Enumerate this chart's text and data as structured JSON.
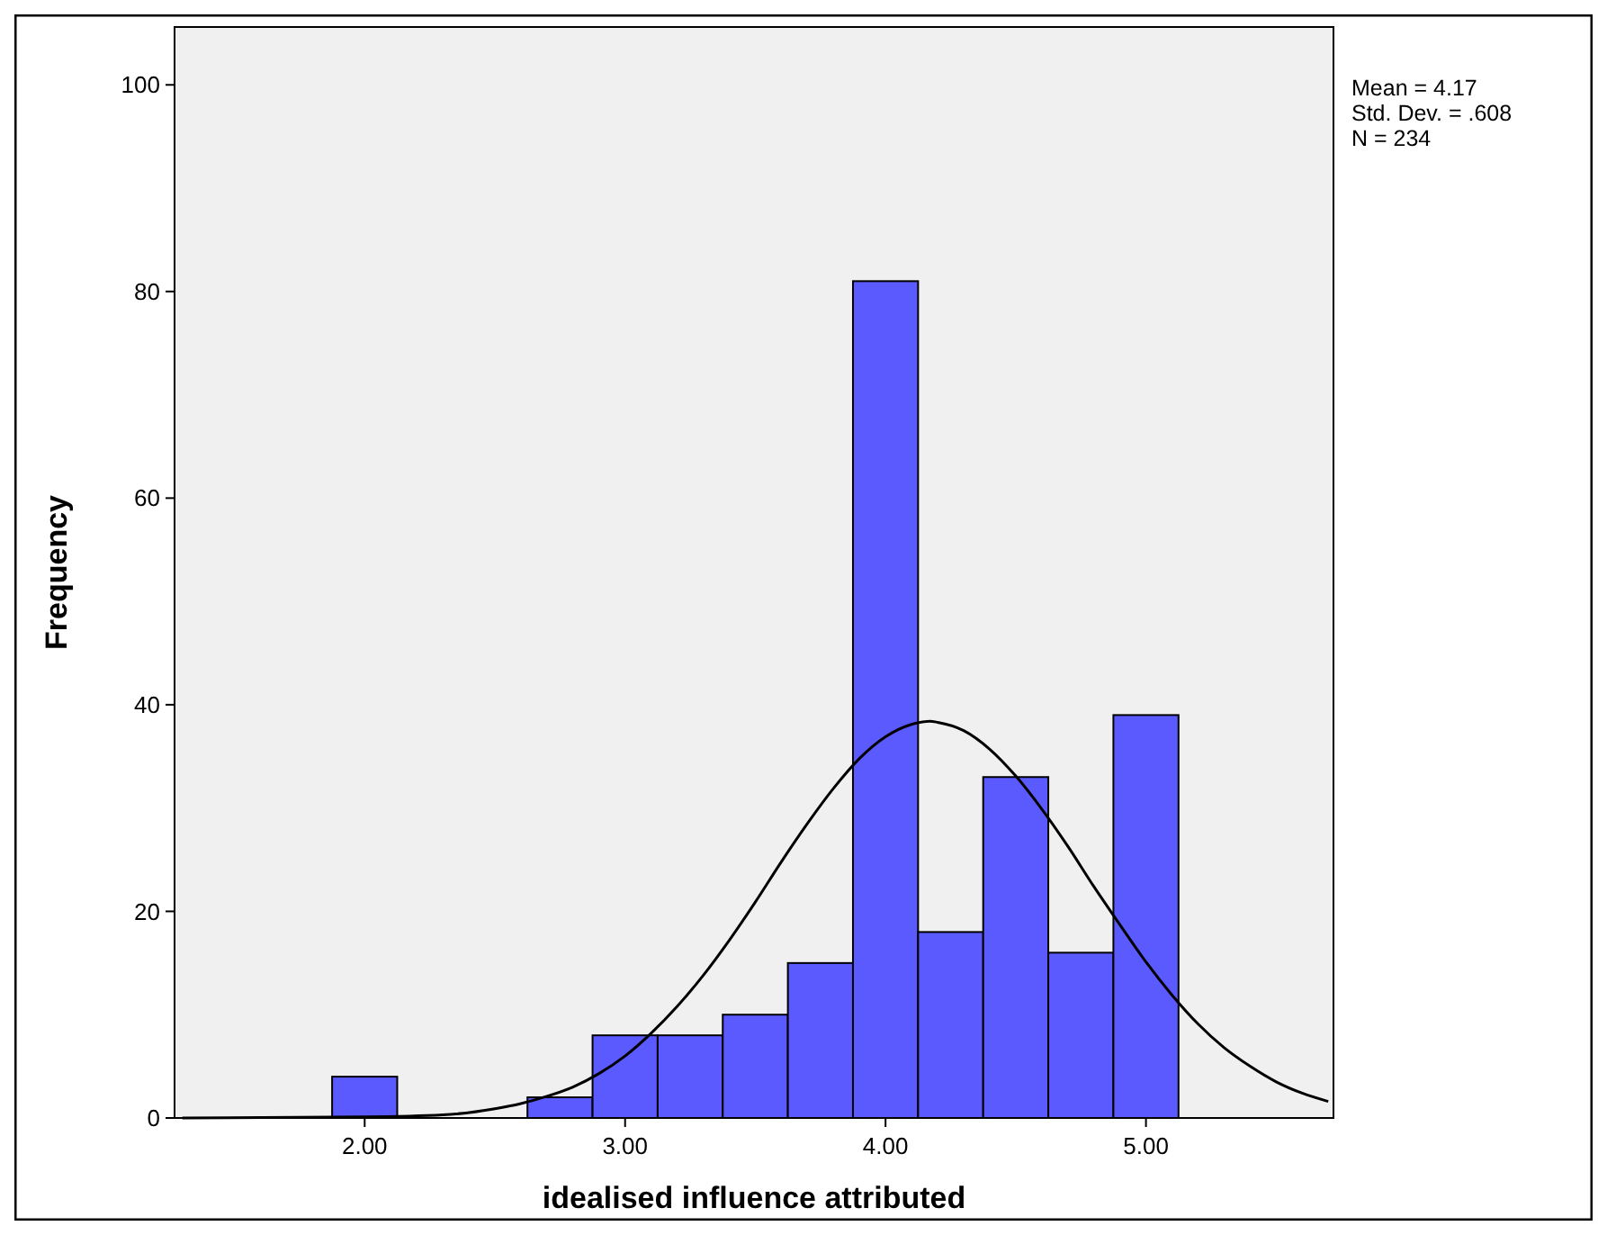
{
  "chart_data": {
    "type": "histogram",
    "xlabel": "idealised influence attributed",
    "ylabel": "Frequency",
    "annotations": [
      "Mean = 4.17",
      "Std. Dev. = .608",
      "N = 234"
    ],
    "bins": [
      1.875,
      2.125,
      2.375,
      2.625,
      2.875,
      3.125,
      3.375,
      3.625,
      3.875,
      4.125,
      4.375,
      4.625,
      4.875,
      5.125
    ],
    "values": [
      4,
      0,
      0,
      2,
      8,
      8,
      10,
      15,
      81,
      18,
      33,
      16,
      39
    ],
    "color": "#5a5aff",
    "series": [
      {
        "type": "line",
        "color": "#000000",
        "x": [
          1.3,
          2.0,
          2.3,
          2.5,
          2.6,
          2.7,
          2.8,
          2.9,
          3.0,
          3.1,
          3.2,
          3.3,
          3.4,
          3.5,
          3.6,
          3.7,
          3.8,
          3.9,
          4.0,
          4.1,
          4.17,
          4.2,
          4.3,
          4.4,
          4.5,
          4.6,
          4.7,
          4.8,
          4.9,
          5.0,
          5.1,
          5.2,
          5.3,
          5.4,
          5.5,
          5.6,
          5.7
        ],
        "values": [
          0,
          0.1,
          0.3,
          0.9,
          1.4,
          2.1,
          3.0,
          4.3,
          6.0,
          8.2,
          10.8,
          13.8,
          17.2,
          20.9,
          24.8,
          28.5,
          31.9,
          34.8,
          36.9,
          38.1,
          38.4,
          38.3,
          37.5,
          35.7,
          33.1,
          29.9,
          26.3,
          22.4,
          18.7,
          15.1,
          11.9,
          9.1,
          6.8,
          5.0,
          3.5,
          2.4,
          1.6
        ]
      }
    ],
    "xlim": [
      1.27,
      5.72
    ],
    "ylim": [
      0,
      105.6
    ],
    "xticks": [
      {
        "value": 2,
        "label": "2.00"
      },
      {
        "value": 3,
        "label": "3.00"
      },
      {
        "value": 4,
        "label": "4.00"
      },
      {
        "value": 5,
        "label": "5.00"
      }
    ],
    "yticks": [
      0,
      20,
      40,
      60,
      80,
      100
    ],
    "grid": false
  }
}
